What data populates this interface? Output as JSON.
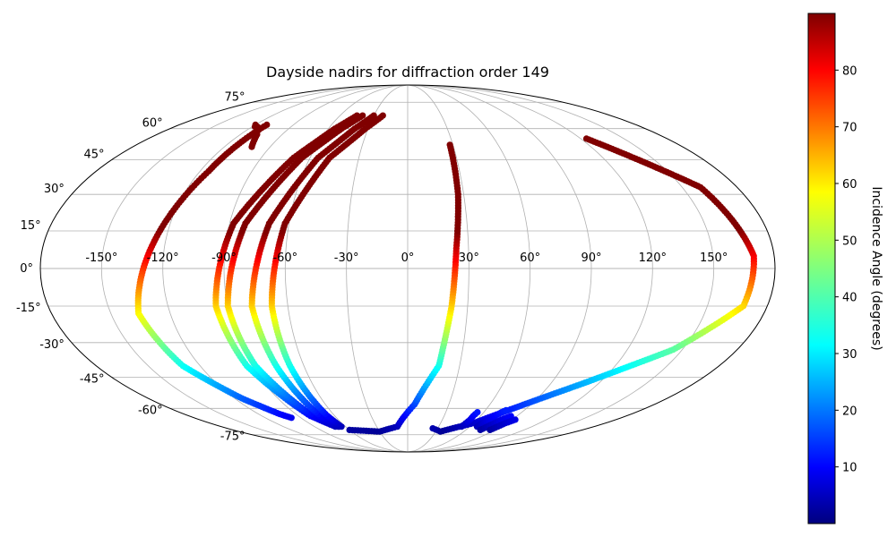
{
  "chart_data": {
    "type": "scatter",
    "projection": "mollweide",
    "title": "Dayside nadirs for diffraction order 149",
    "xlabel": "",
    "ylabel": "",
    "xlim": [
      -180,
      180
    ],
    "ylim": [
      -90,
      90
    ],
    "grid": true,
    "x_ticks": [
      -150,
      -120,
      -90,
      -60,
      -30,
      0,
      30,
      60,
      90,
      120,
      150
    ],
    "x_tick_labels": [
      "-150°",
      "-120°",
      "-90°",
      "-60°",
      "-30°",
      "0°",
      "30°",
      "60°",
      "90°",
      "120°",
      "150°"
    ],
    "y_ticks": [
      75,
      60,
      45,
      30,
      15,
      0,
      -15,
      -30,
      -45,
      -60,
      -75
    ],
    "y_tick_labels": [
      "75°",
      "60°",
      "45°",
      "30°",
      "15°",
      "0°",
      "-15°",
      "-30°",
      "-45°",
      "-60°",
      "-75°"
    ],
    "colorbar": {
      "label": "Incidence Angle (degrees)",
      "colormap": "jet",
      "range": [
        0,
        90
      ],
      "ticks": [
        10,
        20,
        30,
        40,
        50,
        60,
        70,
        80
      ],
      "tick_labels": [
        "10",
        "20",
        "30",
        "40",
        "50",
        "60",
        "70",
        "80"
      ],
      "placement": "right"
    },
    "series": [
      {
        "lat0": -75,
        "dir": 1,
        "points": [
          [
            -111,
            62
          ],
          [
            -115,
            40
          ],
          [
            -136,
            -18
          ],
          [
            -130,
            -40
          ],
          [
            -115,
            -55
          ],
          [
            -103,
            -63
          ],
          [
            -98,
            -65
          ]
        ]
      },
      {
        "lat0": -75,
        "dir": 1,
        "points": [
          [
            -70,
            -70
          ],
          [
            -80,
            -64
          ],
          [
            -93,
            -40
          ],
          [
            -96,
            -15
          ],
          [
            -88,
            18
          ],
          [
            -70,
            46
          ],
          [
            -55,
            60
          ],
          [
            -45,
            67
          ]
        ]
      },
      {
        "lat0": -75,
        "dir": 1,
        "points": [
          [
            -67,
            -70
          ],
          [
            -78,
            -64
          ],
          [
            -88,
            -40
          ],
          [
            -90,
            -15
          ],
          [
            -82,
            18
          ],
          [
            -65,
            46
          ],
          [
            -50,
            60
          ],
          [
            -40,
            67
          ]
        ]
      },
      {
        "lat0": -75,
        "dir": 1,
        "points": [
          [
            -66,
            -70
          ],
          [
            -72,
            -64
          ],
          [
            -76,
            -40
          ],
          [
            -78,
            -15
          ],
          [
            -70,
            18
          ],
          [
            -55,
            46
          ],
          [
            -40,
            60
          ],
          [
            -30,
            67
          ]
        ]
      },
      {
        "lat0": -75,
        "dir": 1,
        "points": [
          [
            -64,
            -70
          ],
          [
            -66,
            -64
          ],
          [
            -68,
            -40
          ],
          [
            -68,
            -15
          ],
          [
            -62,
            18
          ],
          [
            -48,
            46
          ],
          [
            -32,
            60
          ],
          [
            -22,
            67
          ]
        ]
      },
      {
        "lat0": -75,
        "dir": 1,
        "points": [
          [
            -60,
            -72
          ],
          [
            -30,
            -73
          ],
          [
            -10,
            -70
          ],
          [
            5,
            -58
          ],
          [
            18,
            -40
          ],
          [
            22,
            -15
          ],
          [
            24,
            8
          ],
          [
            27,
            30
          ],
          [
            28,
            52
          ]
        ]
      },
      {
        "lat0": -75,
        "dir": -1,
        "points": [
          [
            124,
            55
          ],
          [
            160,
            33
          ],
          [
            170,
            5
          ],
          [
            168,
            -15
          ],
          [
            145,
            -33
          ],
          [
            110,
            -48
          ],
          [
            80,
            -60
          ],
          [
            60,
            -68
          ],
          [
            35,
            -73
          ],
          [
            25,
            -71
          ]
        ]
      },
      {
        "lat0": -75,
        "dir": 1,
        "points": [
          [
            -120,
            62
          ],
          [
            -118,
            61
          ],
          [
            -116,
            61
          ],
          [
            -114,
            60
          ],
          [
            -112,
            59
          ],
          [
            -110,
            58
          ],
          [
            -108,
            57
          ],
          [
            -106,
            55
          ],
          [
            -104,
            53
          ],
          [
            -102,
            51
          ]
        ]
      },
      {
        "lat0": -75,
        "dir": 1,
        "points": [
          [
            67,
            -70
          ],
          [
            68,
            -68
          ],
          [
            70,
            -66
          ],
          [
            72,
            -64
          ],
          [
            74,
            -62
          ],
          [
            76,
            -61
          ]
        ]
      },
      {
        "lat0": -75,
        "dir": 1,
        "points": [
          [
            75,
            -72
          ],
          [
            77,
            -70
          ],
          [
            79,
            -68
          ],
          [
            81,
            -66
          ],
          [
            83,
            -65
          ],
          [
            85,
            -64
          ]
        ]
      },
      {
        "lat0": -75,
        "dir": 1,
        "points": [
          [
            85,
            -72
          ],
          [
            87,
            -70
          ],
          [
            89,
            -68
          ],
          [
            91,
            -67
          ],
          [
            93,
            -66
          ]
        ]
      },
      {
        "lat0": -75,
        "dir": 1,
        "points": [
          [
            52,
            -70
          ],
          [
            53,
            -68
          ],
          [
            54,
            -66
          ],
          [
            54,
            -64
          ],
          [
            55,
            -62
          ]
        ]
      }
    ]
  }
}
